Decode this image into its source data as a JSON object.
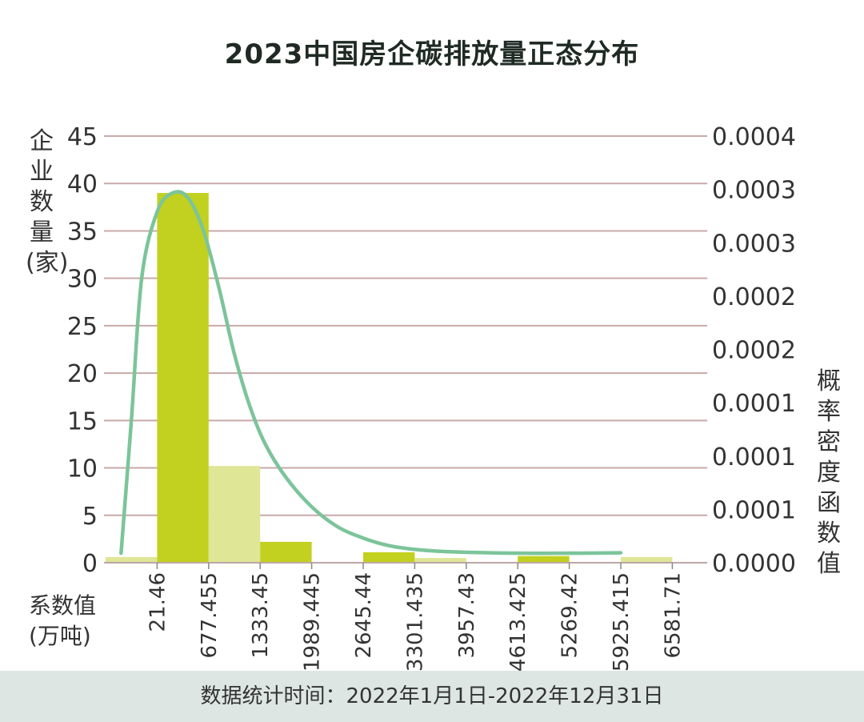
{
  "title": "2023中国房企碳排放量正态分布",
  "footer": "数据统计时间：2022年1月1日-2022年12月31日",
  "colors": {
    "bar_dark": "#c2d11f",
    "bar_light": "#dfe696",
    "curve": "#7cc49a",
    "grid": "#c9a9a9",
    "footer_bg": "#dde6e2"
  },
  "chart_data": {
    "type": "bar",
    "title": "2023中国房企碳排放量正态分布",
    "ylabel": "企业数量(家)",
    "y2label": "概率密度函数值",
    "xlabel": "系数值(万吨)",
    "ylim": [
      0,
      45
    ],
    "y_ticks": [
      "0",
      "5",
      "10",
      "15",
      "20",
      "25",
      "30",
      "35",
      "40",
      "45"
    ],
    "y2_ticks": [
      "0.0000",
      "0.0001",
      "0.0001",
      "0.0001",
      "0.0002",
      "0.0002",
      "0.0003",
      "0.0003",
      "0.0004"
    ],
    "y2_range_equiv_y": [
      0,
      45
    ],
    "grid": true,
    "x_tick_labels": [
      "21.46",
      "677.455",
      "1333.45",
      "1989.445",
      "2645.44",
      "3301.435",
      "3957.43",
      "4613.425",
      "5269.42",
      "5925.415",
      "6581.71"
    ],
    "bins": [
      {
        "value": 0.6,
        "shade": "light"
      },
      {
        "value": 39,
        "shade": "dark"
      },
      {
        "value": 10.2,
        "shade": "light"
      },
      {
        "value": 2.2,
        "shade": "dark"
      },
      {
        "value": 0,
        "shade": "light"
      },
      {
        "value": 1.1,
        "shade": "dark"
      },
      {
        "value": 0.5,
        "shade": "light"
      },
      {
        "value": 0,
        "shade": "dark"
      },
      {
        "value": 0.7,
        "shade": "dark"
      },
      {
        "value": 0,
        "shade": "light"
      },
      {
        "value": 0.6,
        "shade": "light"
      }
    ],
    "density_curve_in_y_units": [
      [
        0.3,
        1.0
      ],
      [
        0.5,
        15
      ],
      [
        0.7,
        30
      ],
      [
        1.0,
        37
      ],
      [
        1.3,
        39
      ],
      [
        1.6,
        38.5
      ],
      [
        1.9,
        35
      ],
      [
        2.2,
        29
      ],
      [
        2.5,
        22
      ],
      [
        2.8,
        16.5
      ],
      [
        3.1,
        12.5
      ],
      [
        3.5,
        9.0
      ],
      [
        4.0,
        5.9
      ],
      [
        4.5,
        3.8
      ],
      [
        5.0,
        2.6
      ],
      [
        5.5,
        1.8
      ],
      [
        6.0,
        1.4
      ],
      [
        6.5,
        1.2
      ],
      [
        7.0,
        1.1
      ],
      [
        8.0,
        1.0
      ],
      [
        9.0,
        1.0
      ],
      [
        10.0,
        1.05
      ]
    ]
  }
}
